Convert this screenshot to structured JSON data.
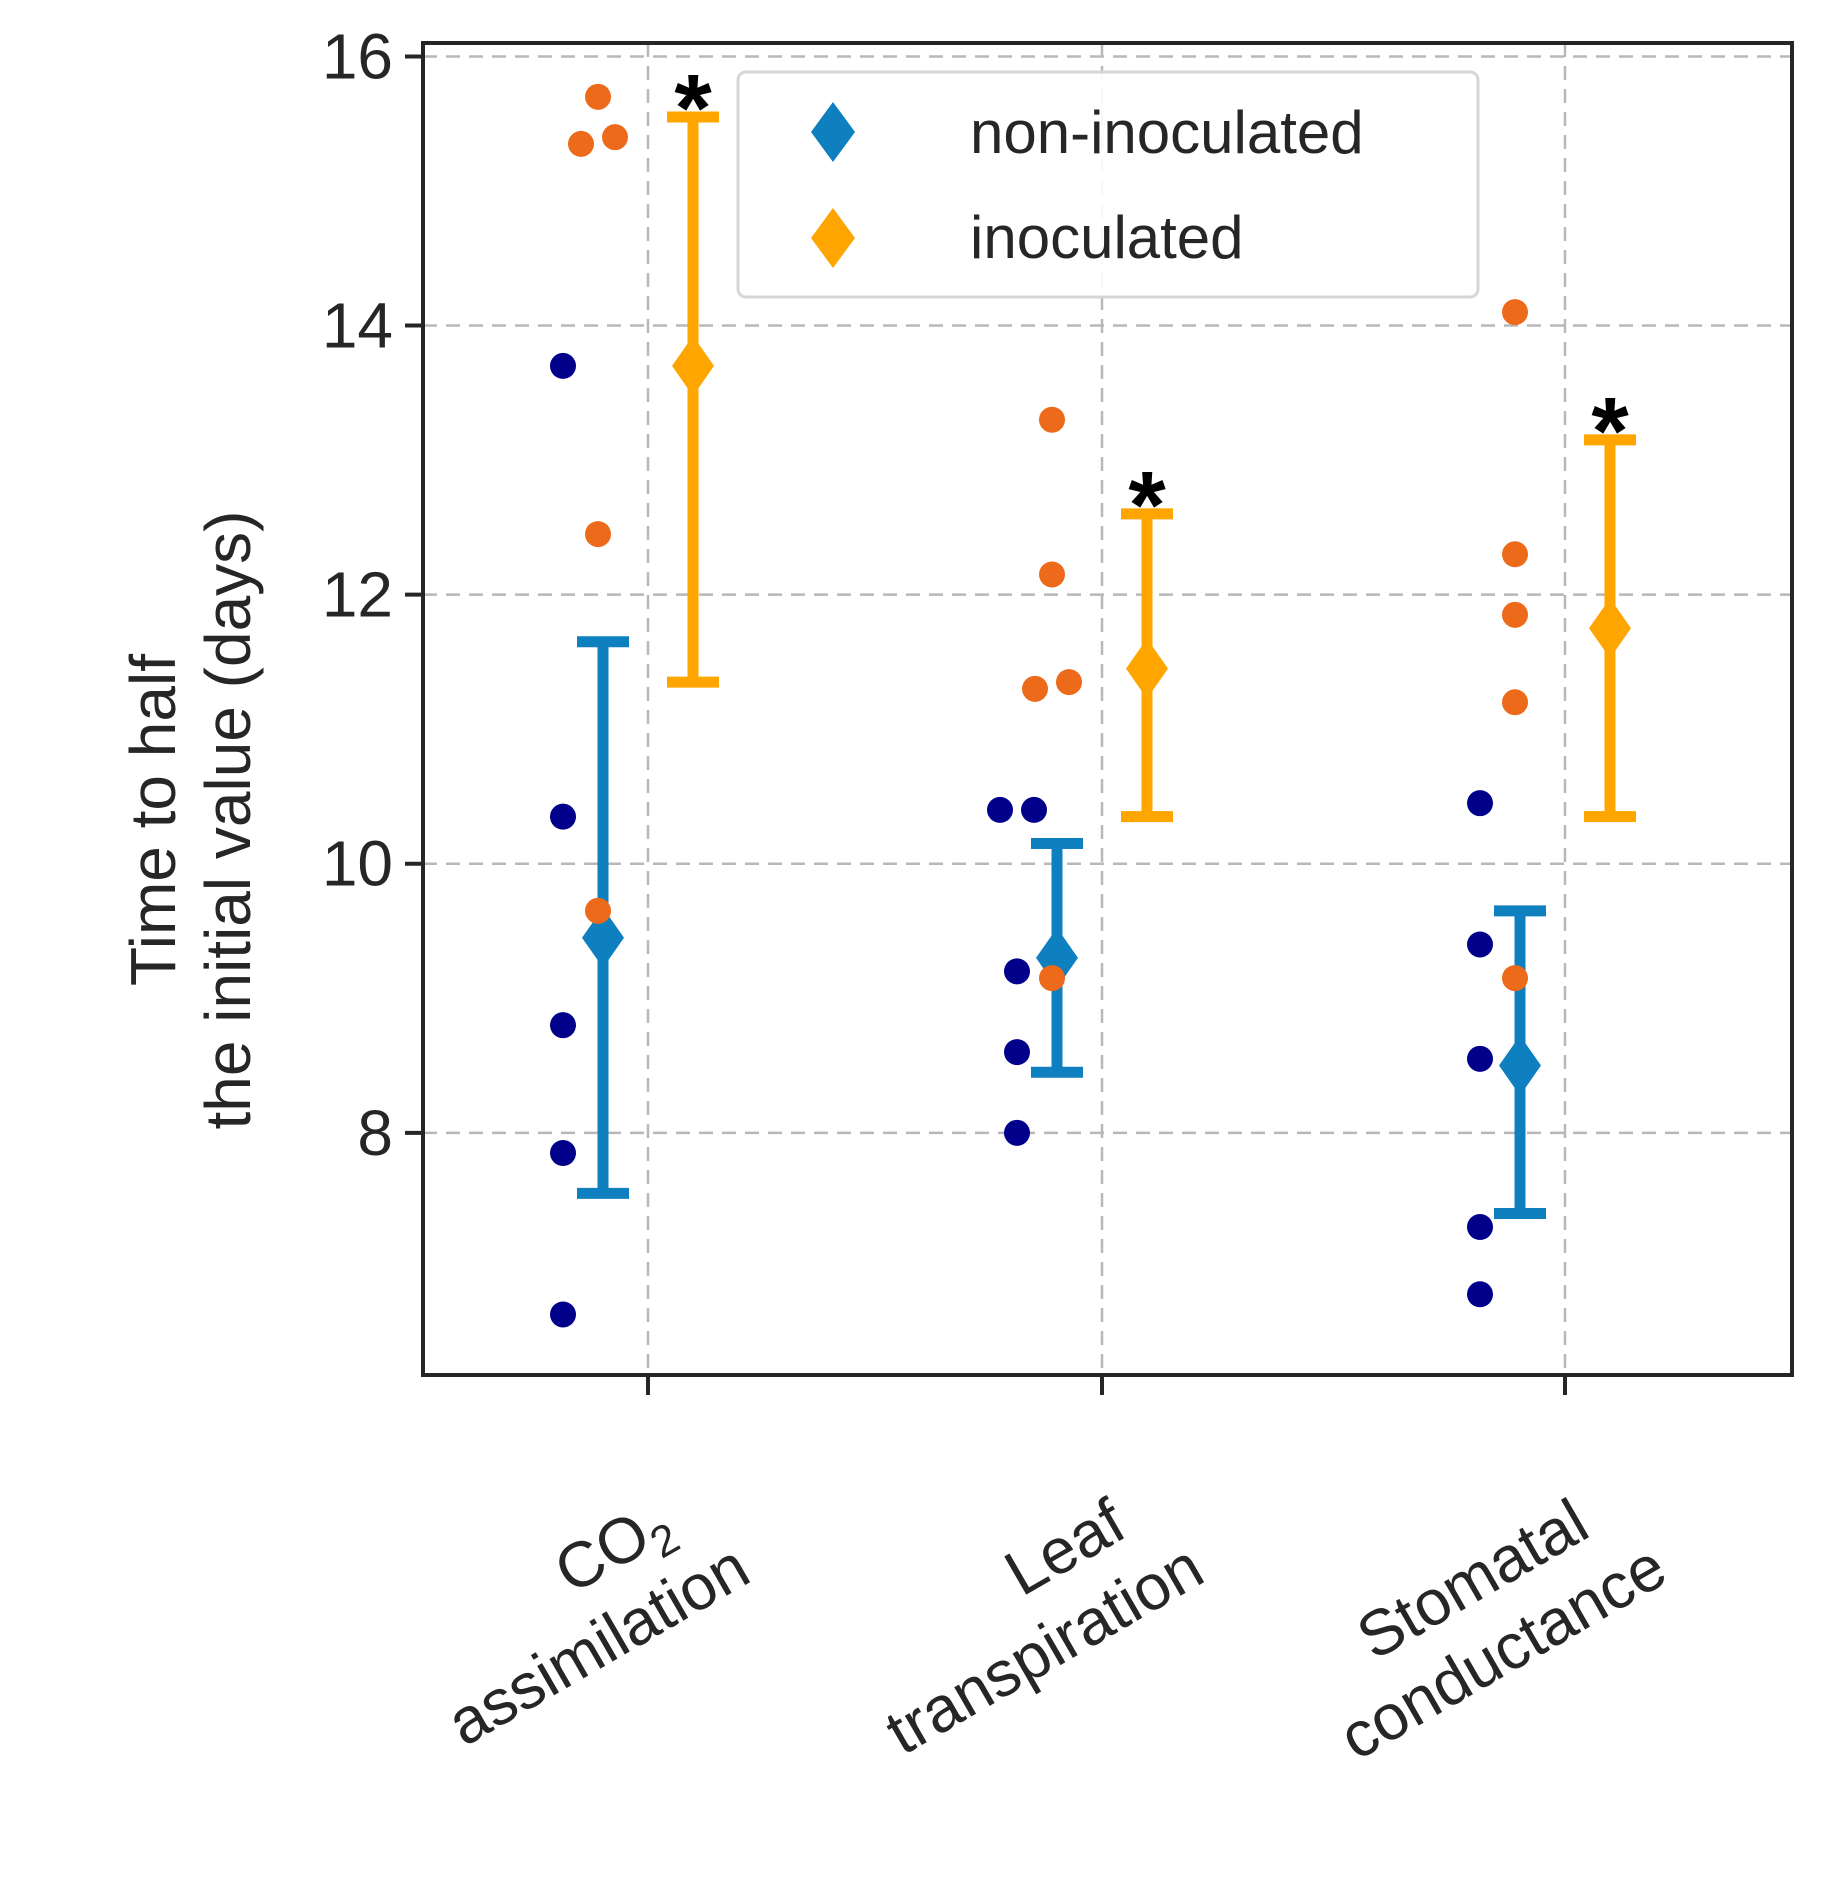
{
  "chart_data": {
    "type": "scatter",
    "ylabel_lines": [
      "Time to half",
      "the initial value (days)"
    ],
    "ylim": [
      6.2,
      16.1
    ],
    "yticks": [
      8,
      10,
      12,
      14,
      16
    ],
    "grid": true,
    "legend_position": "top-right",
    "categories": [
      {
        "line1": "CO",
        "line1_sub": "2",
        "line2": "assimilation"
      },
      {
        "line1": "Leaf",
        "line1_sub": "",
        "line2": "transpiration"
      },
      {
        "line1": "Stomatal",
        "line1_sub": "",
        "line2": "conductance"
      }
    ],
    "series": [
      {
        "name": "non-inoculated",
        "color": "#0e7fbf",
        "point_color": "#00008b",
        "means": [
          9.45,
          9.3,
          8.5
        ],
        "err_low": [
          7.55,
          8.45,
          7.4
        ],
        "err_high": [
          11.65,
          10.15,
          9.65
        ],
        "points": [
          [
            6.65,
            7.85,
            8.8,
            10.35,
            13.7
          ],
          [
            8.0,
            8.6,
            9.2,
            10.4,
            10.4
          ],
          [
            6.8,
            7.3,
            8.55,
            9.4,
            10.45
          ]
        ]
      },
      {
        "name": "inoculated",
        "color": "#ffa500",
        "point_color": "#ec6a1a",
        "means": [
          13.7,
          11.45,
          11.75
        ],
        "err_low": [
          11.35,
          10.35,
          10.35
        ],
        "err_high": [
          15.55,
          12.6,
          13.15
        ],
        "points": [
          [
            9.65,
            12.45,
            15.35,
            15.4,
            15.7
          ],
          [
            9.15,
            11.3,
            11.35,
            12.15,
            13.3
          ],
          [
            9.15,
            11.2,
            11.85,
            12.3,
            14.1
          ]
        ]
      }
    ],
    "significance_marker": "*",
    "significant": [
      true,
      true,
      true
    ]
  }
}
